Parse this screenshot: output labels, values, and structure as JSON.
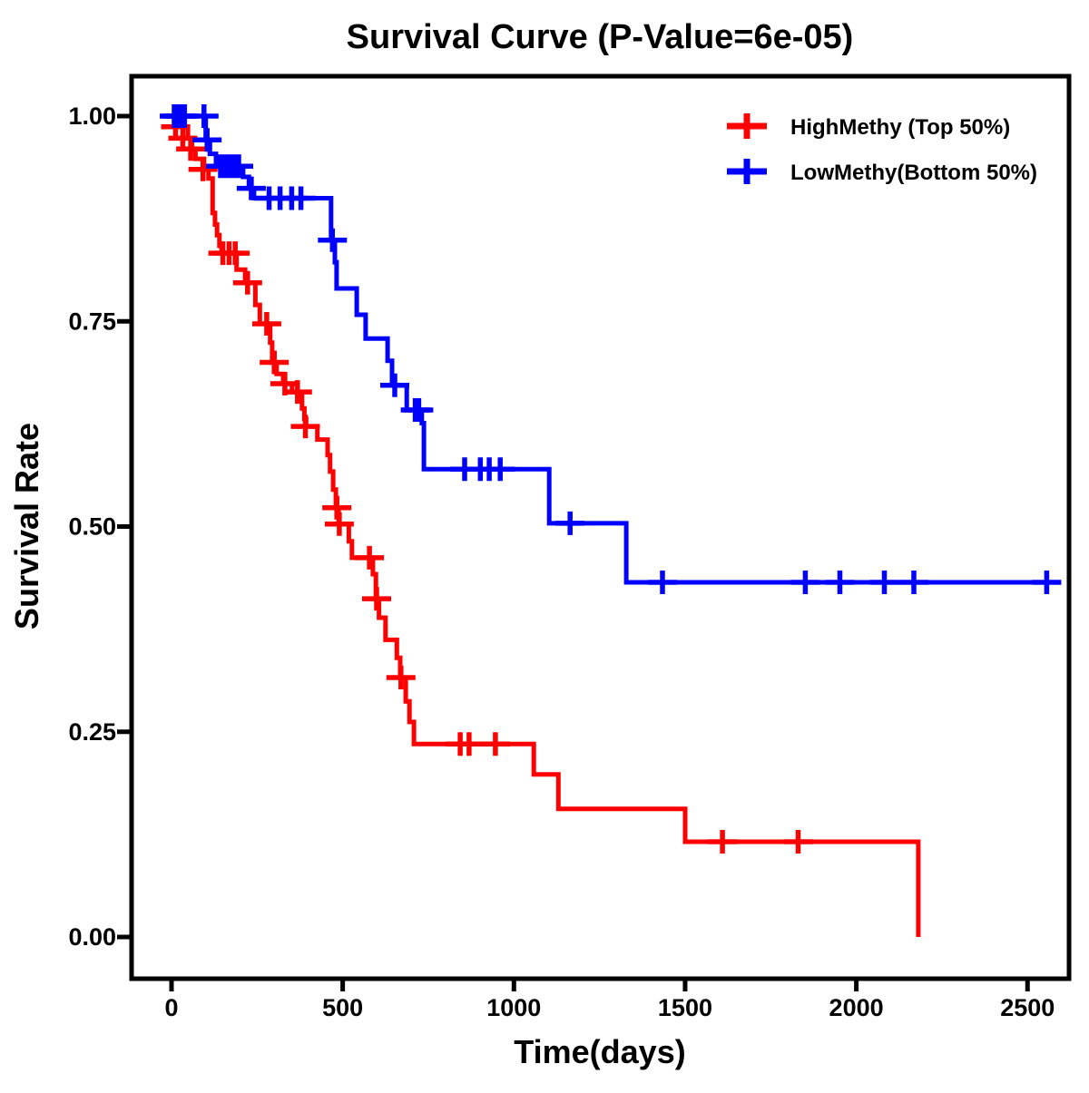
{
  "chart_data": {
    "type": "line",
    "subtype": "kaplan-meier-step",
    "title": "Survival Curve (P-Value=6e-05)",
    "p_value": "6e-05",
    "xlabel": "Time(days)",
    "ylabel": "Survival Rate",
    "xlim": [
      -117,
      2620
    ],
    "ylim": [
      -0.052,
      1.049
    ],
    "grid": false,
    "background": "#ffffff",
    "frame_color": "#000000",
    "legend_position": "top-right-inside",
    "x_ticks": [
      {
        "v": 0,
        "label": "0"
      },
      {
        "v": 500,
        "label": "500"
      },
      {
        "v": 1000,
        "label": "1000"
      },
      {
        "v": 1500,
        "label": "1500"
      },
      {
        "v": 2000,
        "label": "2000"
      },
      {
        "v": 2500,
        "label": "2500"
      }
    ],
    "y_ticks": [
      {
        "v": 0.0,
        "label": "0.00"
      },
      {
        "v": 0.25,
        "label": "0.25"
      },
      {
        "v": 0.5,
        "label": "0.50"
      },
      {
        "v": 0.75,
        "label": "0.75"
      },
      {
        "v": 1.0,
        "label": "1.00"
      }
    ],
    "series": [
      {
        "name": "HighMethy (Top 50%)",
        "color": "#ff0000",
        "steps": [
          [
            0,
            1.0
          ],
          [
            20,
            0.987
          ],
          [
            48,
            0.973
          ],
          [
            60,
            0.96
          ],
          [
            70,
            0.948
          ],
          [
            95,
            0.935
          ],
          [
            108,
            0.924
          ],
          [
            120,
            0.882
          ],
          [
            127,
            0.868
          ],
          [
            133,
            0.855
          ],
          [
            140,
            0.842
          ],
          [
            146,
            0.833
          ],
          [
            190,
            0.813
          ],
          [
            215,
            0.797
          ],
          [
            245,
            0.77
          ],
          [
            258,
            0.747
          ],
          [
            288,
            0.724
          ],
          [
            294,
            0.7
          ],
          [
            307,
            0.686
          ],
          [
            326,
            0.674
          ],
          [
            352,
            0.664
          ],
          [
            381,
            0.644
          ],
          [
            388,
            0.631
          ],
          [
            393,
            0.622
          ],
          [
            426,
            0.606
          ],
          [
            456,
            0.587
          ],
          [
            463,
            0.567
          ],
          [
            472,
            0.545
          ],
          [
            480,
            0.523
          ],
          [
            488,
            0.503
          ],
          [
            518,
            0.482
          ],
          [
            527,
            0.462
          ],
          [
            588,
            0.442
          ],
          [
            597,
            0.412
          ],
          [
            606,
            0.389
          ],
          [
            625,
            0.362
          ],
          [
            658,
            0.34
          ],
          [
            668,
            0.316
          ],
          [
            684,
            0.287
          ],
          [
            695,
            0.262
          ],
          [
            708,
            0.235
          ],
          [
            1058,
            0.198
          ],
          [
            1130,
            0.156
          ],
          [
            1500,
            0.116
          ],
          [
            2181,
            0.0
          ]
        ],
        "censors": [
          [
            12,
            0.987
          ],
          [
            33,
            0.973
          ],
          [
            56,
            0.96
          ],
          [
            92,
            0.935
          ],
          [
            150,
            0.833
          ],
          [
            168,
            0.833
          ],
          [
            186,
            0.833
          ],
          [
            222,
            0.797
          ],
          [
            278,
            0.747
          ],
          [
            300,
            0.7
          ],
          [
            331,
            0.674
          ],
          [
            368,
            0.664
          ],
          [
            391,
            0.622
          ],
          [
            483,
            0.523
          ],
          [
            490,
            0.503
          ],
          [
            578,
            0.462
          ],
          [
            599,
            0.412
          ],
          [
            670,
            0.316
          ],
          [
            843,
            0.235
          ],
          [
            869,
            0.235
          ],
          [
            946,
            0.235
          ],
          [
            1609,
            0.116
          ],
          [
            1830,
            0.116
          ]
        ],
        "end_time": 2181
      },
      {
        "name": "LowMethy(Bottom 50%)",
        "color": "#0000ff",
        "steps": [
          [
            0,
            1.0
          ],
          [
            100,
            0.971
          ],
          [
            112,
            0.954
          ],
          [
            130,
            0.939
          ],
          [
            209,
            0.926
          ],
          [
            226,
            0.912
          ],
          [
            241,
            0.9
          ],
          [
            466,
            0.849
          ],
          [
            477,
            0.822
          ],
          [
            482,
            0.79
          ],
          [
            541,
            0.758
          ],
          [
            567,
            0.729
          ],
          [
            631,
            0.702
          ],
          [
            644,
            0.672
          ],
          [
            687,
            0.642
          ],
          [
            731,
            0.626
          ],
          [
            737,
            0.57
          ],
          [
            1103,
            0.504
          ],
          [
            1328,
            0.432
          ]
        ],
        "censors": [
          [
            8,
            1.0
          ],
          [
            18,
            1.0
          ],
          [
            28,
            1.0
          ],
          [
            38,
            1.0
          ],
          [
            95,
            1.0
          ],
          [
            104,
            0.971
          ],
          [
            143,
            0.939
          ],
          [
            156,
            0.939
          ],
          [
            170,
            0.939
          ],
          [
            183,
            0.939
          ],
          [
            196,
            0.939
          ],
          [
            233,
            0.912
          ],
          [
            285,
            0.9
          ],
          [
            317,
            0.9
          ],
          [
            351,
            0.9
          ],
          [
            378,
            0.9
          ],
          [
            470,
            0.849
          ],
          [
            652,
            0.672
          ],
          [
            712,
            0.642
          ],
          [
            722,
            0.642
          ],
          [
            856,
            0.57
          ],
          [
            902,
            0.57
          ],
          [
            928,
            0.57
          ],
          [
            960,
            0.57
          ],
          [
            1164,
            0.504
          ],
          [
            1434,
            0.432
          ],
          [
            1851,
            0.432
          ],
          [
            1952,
            0.432
          ],
          [
            2082,
            0.432
          ],
          [
            2168,
            0.432
          ],
          [
            2556,
            0.432
          ]
        ],
        "end_time": 2587
      }
    ]
  }
}
